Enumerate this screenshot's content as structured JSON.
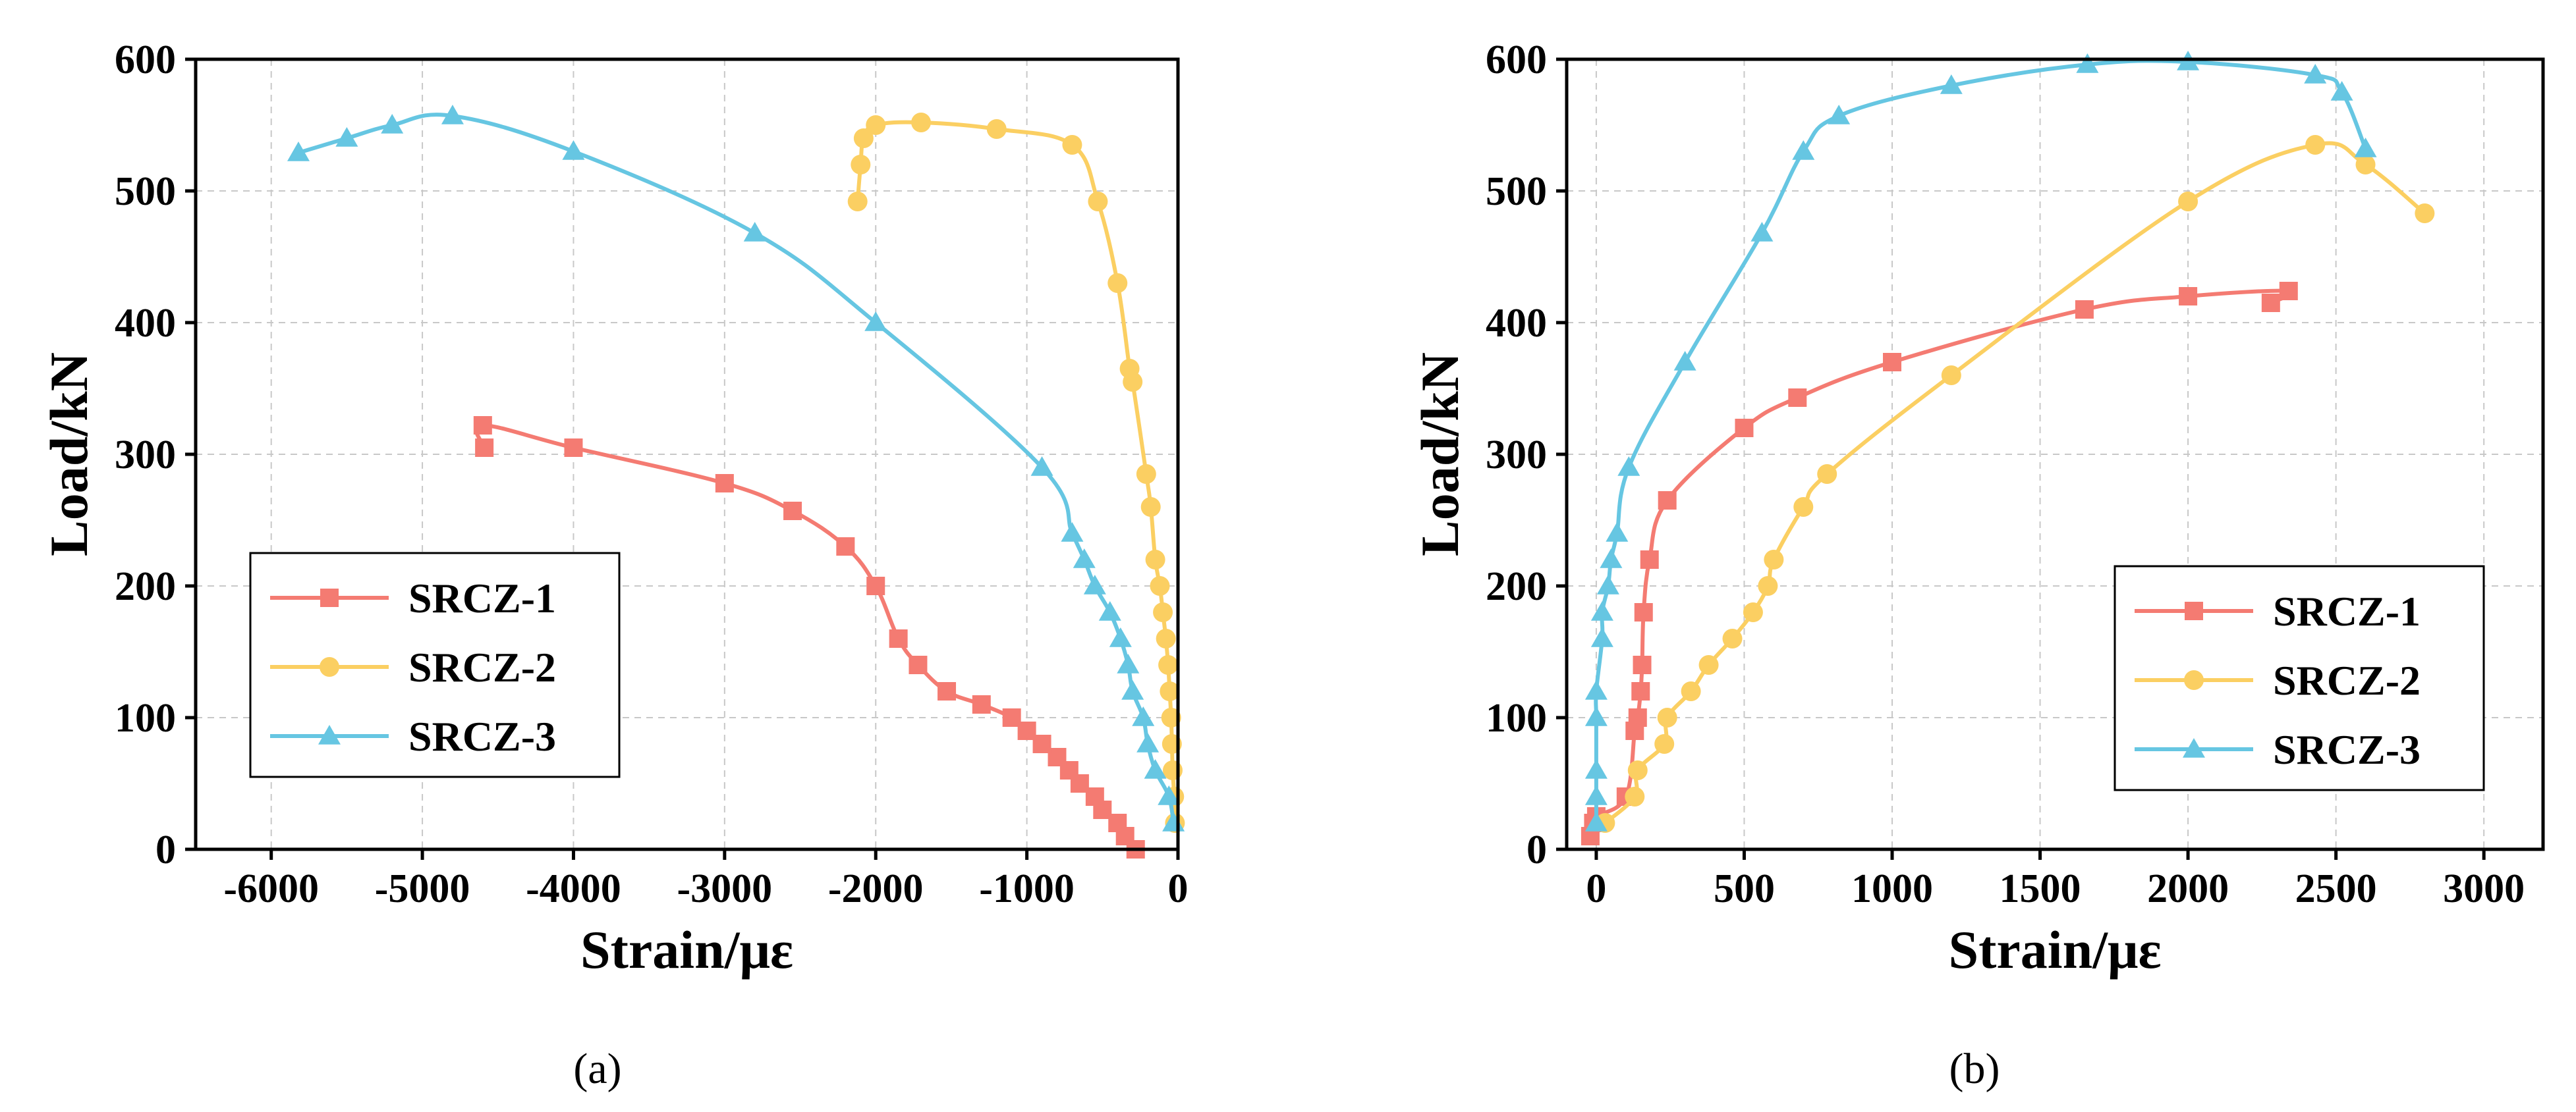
{
  "figure": {
    "panel_labels": {
      "a": "(a)",
      "b": "(b)"
    }
  },
  "chart_data": [
    {
      "id": "a",
      "type": "line",
      "xlabel": "Strain/με",
      "ylabel": "Load/kN",
      "xlim": [
        -6500,
        0
      ],
      "ylim": [
        0,
        600
      ],
      "xticks": [
        -6000,
        -5000,
        -4000,
        -3000,
        -2000,
        -1000,
        0
      ],
      "yticks": [
        0,
        100,
        200,
        300,
        400,
        500,
        600
      ],
      "grid": true,
      "legend_position": "bottom-left",
      "series": [
        {
          "name": "SRCZ-1",
          "color": "#f47b72",
          "marker": "square",
          "points": [
            [
              -280,
              0
            ],
            [
              -350,
              10
            ],
            [
              -400,
              20
            ],
            [
              -500,
              30
            ],
            [
              -550,
              40
            ],
            [
              -650,
              50
            ],
            [
              -720,
              60
            ],
            [
              -800,
              70
            ],
            [
              -900,
              80
            ],
            [
              -1000,
              90
            ],
            [
              -1100,
              100
            ],
            [
              -1300,
              110
            ],
            [
              -1530,
              120
            ],
            [
              -1720,
              140
            ],
            [
              -1850,
              160
            ],
            [
              -2000,
              200
            ],
            [
              -2200,
              230
            ],
            [
              -2550,
              257
            ],
            [
              -3000,
              278
            ],
            [
              -4000,
              305
            ],
            [
              -4600,
              322
            ],
            [
              -4590,
              305
            ]
          ]
        },
        {
          "name": "SRCZ-2",
          "color": "#fbcf62",
          "marker": "circle",
          "points": [
            [
              -20,
              20
            ],
            [
              -25,
              40
            ],
            [
              -35,
              60
            ],
            [
              -40,
              80
            ],
            [
              -45,
              100
            ],
            [
              -55,
              120
            ],
            [
              -65,
              140
            ],
            [
              -80,
              160
            ],
            [
              -100,
              180
            ],
            [
              -120,
              200
            ],
            [
              -150,
              220
            ],
            [
              -180,
              260
            ],
            [
              -210,
              285
            ],
            [
              -300,
              355
            ],
            [
              -320,
              365
            ],
            [
              -400,
              430
            ],
            [
              -530,
              492
            ],
            [
              -700,
              535
            ],
            [
              -1200,
              547
            ],
            [
              -1700,
              552
            ],
            [
              -2000,
              550
            ],
            [
              -2080,
              540
            ],
            [
              -2100,
              520
            ],
            [
              -2120,
              492
            ]
          ]
        },
        {
          "name": "SRCZ-3",
          "color": "#66c6e2",
          "marker": "triangle",
          "points": [
            [
              -30,
              20
            ],
            [
              -60,
              40
            ],
            [
              -150,
              60
            ],
            [
              -200,
              80
            ],
            [
              -230,
              100
            ],
            [
              -300,
              120
            ],
            [
              -330,
              140
            ],
            [
              -380,
              160
            ],
            [
              -450,
              180
            ],
            [
              -550,
              200
            ],
            [
              -620,
              220
            ],
            [
              -700,
              240
            ],
            [
              -900,
              290
            ],
            [
              -2000,
              400
            ],
            [
              -2800,
              468
            ],
            [
              -4000,
              530
            ],
            [
              -4800,
              557
            ],
            [
              -5200,
              550
            ],
            [
              -5500,
              540
            ],
            [
              -5820,
              529
            ]
          ]
        }
      ]
    },
    {
      "id": "b",
      "type": "line",
      "xlabel": "Strain/με",
      "ylabel": "Load/kN",
      "xlim": [
        -100,
        3200
      ],
      "ylim": [
        0,
        600
      ],
      "xticks": [
        0,
        500,
        1000,
        1500,
        2000,
        2500,
        3000
      ],
      "yticks": [
        0,
        100,
        200,
        300,
        400,
        500,
        600
      ],
      "grid": true,
      "legend_position": "bottom-right",
      "series": [
        {
          "name": "SRCZ-1",
          "color": "#f47b72",
          "marker": "square",
          "points": [
            [
              -20,
              10
            ],
            [
              -10,
              20
            ],
            [
              0,
              25
            ],
            [
              100,
              40
            ],
            [
              130,
              90
            ],
            [
              140,
              100
            ],
            [
              150,
              120
            ],
            [
              155,
              140
            ],
            [
              160,
              180
            ],
            [
              180,
              220
            ],
            [
              240,
              265
            ],
            [
              500,
              320
            ],
            [
              680,
              343
            ],
            [
              1000,
              370
            ],
            [
              1650,
              410
            ],
            [
              2000,
              420
            ],
            [
              2340,
              424
            ],
            [
              2280,
              415
            ]
          ]
        },
        {
          "name": "SRCZ-2",
          "color": "#fbcf62",
          "marker": "circle",
          "points": [
            [
              30,
              20
            ],
            [
              130,
              40
            ],
            [
              140,
              60
            ],
            [
              230,
              80
            ],
            [
              240,
              100
            ],
            [
              320,
              120
            ],
            [
              380,
              140
            ],
            [
              460,
              160
            ],
            [
              530,
              180
            ],
            [
              580,
              200
            ],
            [
              600,
              220
            ],
            [
              700,
              260
            ],
            [
              780,
              285
            ],
            [
              1200,
              360
            ],
            [
              2000,
              492
            ],
            [
              2430,
              535
            ],
            [
              2600,
              520
            ],
            [
              2800,
              483
            ]
          ]
        },
        {
          "name": "SRCZ-3",
          "color": "#66c6e2",
          "marker": "triangle",
          "points": [
            [
              0,
              20
            ],
            [
              0,
              40
            ],
            [
              0,
              60
            ],
            [
              0,
              100
            ],
            [
              0,
              120
            ],
            [
              20,
              160
            ],
            [
              20,
              180
            ],
            [
              40,
              200
            ],
            [
              50,
              220
            ],
            [
              70,
              240
            ],
            [
              110,
              290
            ],
            [
              300,
              370
            ],
            [
              560,
              468
            ],
            [
              700,
              530
            ],
            [
              820,
              557
            ],
            [
              1200,
              580
            ],
            [
              1660,
              596
            ],
            [
              2000,
              598
            ],
            [
              2430,
              588
            ],
            [
              2520,
              575
            ],
            [
              2600,
              532
            ]
          ]
        }
      ]
    }
  ]
}
